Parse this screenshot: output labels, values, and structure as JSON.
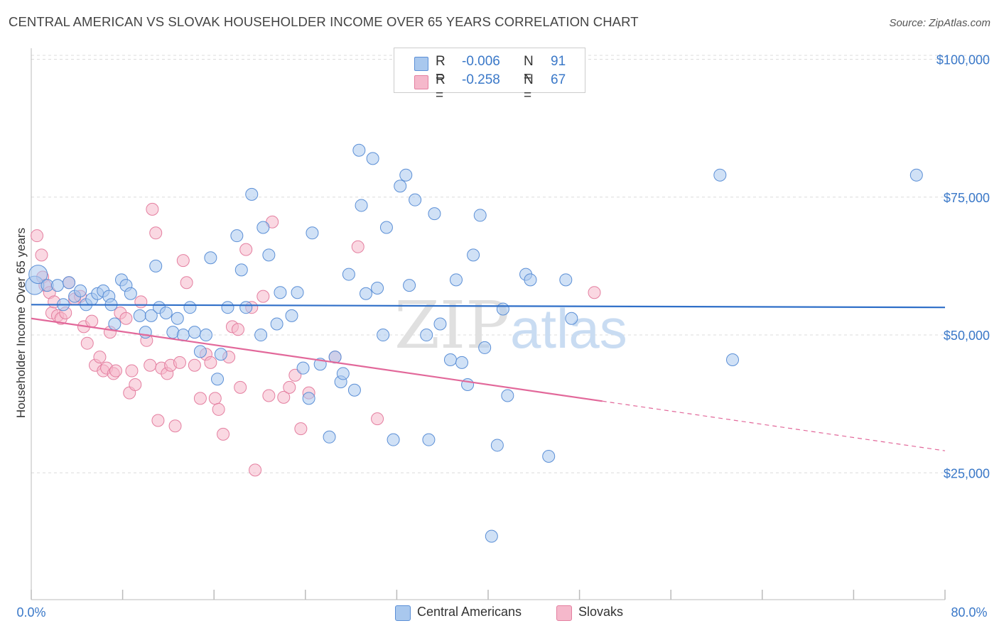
{
  "title": "CENTRAL AMERICAN VS SLOVAK HOUSEHOLDER INCOME OVER 65 YEARS CORRELATION CHART",
  "source": "Source: ZipAtlas.com",
  "watermark": {
    "part1": "ZIP",
    "part2": "atlas"
  },
  "legend": {
    "rows": [
      {
        "r_label": "R =",
        "r_value": "-0.006",
        "n_label": "N =",
        "n_value": "91"
      },
      {
        "r_label": "R =",
        "r_value": "-0.258",
        "n_label": "N =",
        "n_value": "67"
      }
    ]
  },
  "colors": {
    "blue_fill": "#a9c8ee",
    "blue_stroke": "#5b8fd6",
    "blue_line": "#2f6fc8",
    "pink_fill": "#f5b8cb",
    "pink_stroke": "#e47fa0",
    "pink_line": "#e2689a",
    "value_text": "#3a78c8"
  },
  "chart_data": {
    "type": "scatter",
    "title": "CENTRAL AMERICAN VS SLOVAK HOUSEHOLDER INCOME OVER 65 YEARS CORRELATION CHART",
    "xlabel": "",
    "ylabel": "Householder Income Over 65 years",
    "xlim": [
      0,
      80
    ],
    "ylim": [
      2000,
      102000
    ],
    "x_tick_labels": [
      "0.0%",
      "80.0%"
    ],
    "y_tick_labels": [
      "$25,000",
      "$50,000",
      "$75,000",
      "$100,000"
    ],
    "y_ticks": [
      25000,
      50000,
      75000,
      100000
    ],
    "grid": true,
    "legend_position": "top-center",
    "series": [
      {
        "name": "Central Americans",
        "r": -0.006,
        "n": 91,
        "trend": {
          "x": [
            0,
            80
          ],
          "y": [
            55500,
            55000
          ]
        },
        "points": [
          [
            0.3,
            59000
          ],
          [
            0.6,
            61000
          ],
          [
            1.4,
            59000
          ],
          [
            2.3,
            59000
          ],
          [
            2.8,
            55500
          ],
          [
            3.3,
            59500
          ],
          [
            3.8,
            57000
          ],
          [
            4.3,
            58000
          ],
          [
            4.8,
            55500
          ],
          [
            5.3,
            56500
          ],
          [
            5.8,
            57500
          ],
          [
            6.3,
            58000
          ],
          [
            6.8,
            57000
          ],
          [
            7.0,
            55500
          ],
          [
            7.3,
            52000
          ],
          [
            7.9,
            60000
          ],
          [
            8.3,
            59000
          ],
          [
            8.7,
            57500
          ],
          [
            9.5,
            53500
          ],
          [
            10.0,
            50500
          ],
          [
            10.5,
            53500
          ],
          [
            10.9,
            62500
          ],
          [
            11.2,
            55000
          ],
          [
            11.8,
            54000
          ],
          [
            12.4,
            50500
          ],
          [
            12.8,
            53000
          ],
          [
            13.3,
            50000
          ],
          [
            13.9,
            55000
          ],
          [
            14.3,
            50500
          ],
          [
            14.8,
            47000
          ],
          [
            15.3,
            50000
          ],
          [
            15.7,
            64000
          ],
          [
            16.3,
            42000
          ],
          [
            16.6,
            46500
          ],
          [
            17.2,
            55000
          ],
          [
            18.0,
            68000
          ],
          [
            18.4,
            61800
          ],
          [
            18.8,
            55000
          ],
          [
            19.3,
            75500
          ],
          [
            20.1,
            50000
          ],
          [
            20.3,
            69500
          ],
          [
            20.8,
            64500
          ],
          [
            21.5,
            52000
          ],
          [
            21.8,
            57700
          ],
          [
            22.8,
            53500
          ],
          [
            23.3,
            57700
          ],
          [
            23.8,
            44000
          ],
          [
            24.3,
            38500
          ],
          [
            24.6,
            68500
          ],
          [
            25.3,
            44700
          ],
          [
            26.1,
            31500
          ],
          [
            26.6,
            46000
          ],
          [
            27.1,
            41500
          ],
          [
            27.3,
            43000
          ],
          [
            27.8,
            61000
          ],
          [
            28.3,
            40000
          ],
          [
            28.7,
            83500
          ],
          [
            28.9,
            73500
          ],
          [
            29.3,
            57500
          ],
          [
            29.9,
            82000
          ],
          [
            30.3,
            58500
          ],
          [
            30.8,
            50000
          ],
          [
            31.1,
            69500
          ],
          [
            31.7,
            31000
          ],
          [
            32.3,
            77000
          ],
          [
            32.8,
            79000
          ],
          [
            33.1,
            59000
          ],
          [
            33.6,
            74500
          ],
          [
            34.6,
            50000
          ],
          [
            34.8,
            31000
          ],
          [
            35.3,
            72000
          ],
          [
            35.8,
            52000
          ],
          [
            36.7,
            45500
          ],
          [
            37.2,
            60000
          ],
          [
            37.7,
            45000
          ],
          [
            38.2,
            41000
          ],
          [
            38.7,
            64500
          ],
          [
            39.3,
            71700
          ],
          [
            39.7,
            47700
          ],
          [
            40.3,
            13500
          ],
          [
            40.8,
            30000
          ],
          [
            41.3,
            54700
          ],
          [
            41.7,
            39000
          ],
          [
            43.3,
            61000
          ],
          [
            43.7,
            60000
          ],
          [
            45.3,
            28000
          ],
          [
            46.8,
            60000
          ],
          [
            47.3,
            53000
          ],
          [
            60.3,
            79000
          ],
          [
            61.4,
            45500
          ],
          [
            77.5,
            79000
          ]
        ]
      },
      {
        "name": "Slovaks",
        "r": -0.258,
        "n": 67,
        "trend": {
          "x": [
            0,
            50
          ],
          "y": [
            53000,
            38000
          ]
        },
        "trend_dashed": {
          "x": [
            50,
            80
          ],
          "y": [
            38000,
            29000
          ]
        },
        "points": [
          [
            0.5,
            68000
          ],
          [
            0.9,
            64500
          ],
          [
            1.0,
            60500
          ],
          [
            1.2,
            59000
          ],
          [
            1.6,
            57700
          ],
          [
            1.8,
            54000
          ],
          [
            2.0,
            56000
          ],
          [
            2.3,
            53500
          ],
          [
            2.6,
            53000
          ],
          [
            3.0,
            54000
          ],
          [
            3.3,
            59500
          ],
          [
            3.8,
            56500
          ],
          [
            4.3,
            57000
          ],
          [
            4.6,
            51500
          ],
          [
            4.9,
            48500
          ],
          [
            5.3,
            52500
          ],
          [
            5.6,
            44500
          ],
          [
            6.0,
            46000
          ],
          [
            6.3,
            43500
          ],
          [
            6.6,
            44000
          ],
          [
            6.9,
            50500
          ],
          [
            7.2,
            43000
          ],
          [
            7.4,
            43500
          ],
          [
            7.8,
            54000
          ],
          [
            8.3,
            53000
          ],
          [
            8.6,
            39500
          ],
          [
            8.8,
            43500
          ],
          [
            9.1,
            41000
          ],
          [
            9.6,
            56000
          ],
          [
            10.1,
            49000
          ],
          [
            10.4,
            44500
          ],
          [
            10.6,
            72800
          ],
          [
            10.9,
            68500
          ],
          [
            11.1,
            34500
          ],
          [
            11.4,
            44000
          ],
          [
            11.9,
            43000
          ],
          [
            12.2,
            44500
          ],
          [
            12.6,
            33500
          ],
          [
            13.0,
            45000
          ],
          [
            13.3,
            63500
          ],
          [
            13.6,
            59500
          ],
          [
            14.3,
            44500
          ],
          [
            14.8,
            38500
          ],
          [
            15.3,
            46500
          ],
          [
            15.7,
            45000
          ],
          [
            16.1,
            38500
          ],
          [
            16.4,
            36500
          ],
          [
            16.8,
            32000
          ],
          [
            17.3,
            46000
          ],
          [
            17.6,
            51500
          ],
          [
            18.1,
            51000
          ],
          [
            18.3,
            40500
          ],
          [
            18.8,
            65500
          ],
          [
            19.3,
            55000
          ],
          [
            19.6,
            25500
          ],
          [
            20.3,
            57000
          ],
          [
            20.8,
            39000
          ],
          [
            21.1,
            70500
          ],
          [
            22.1,
            38700
          ],
          [
            22.6,
            40500
          ],
          [
            23.1,
            42700
          ],
          [
            23.6,
            33000
          ],
          [
            24.3,
            39500
          ],
          [
            26.6,
            46000
          ],
          [
            28.6,
            66000
          ],
          [
            30.3,
            34800
          ],
          [
            49.3,
            57700
          ]
        ]
      }
    ]
  }
}
